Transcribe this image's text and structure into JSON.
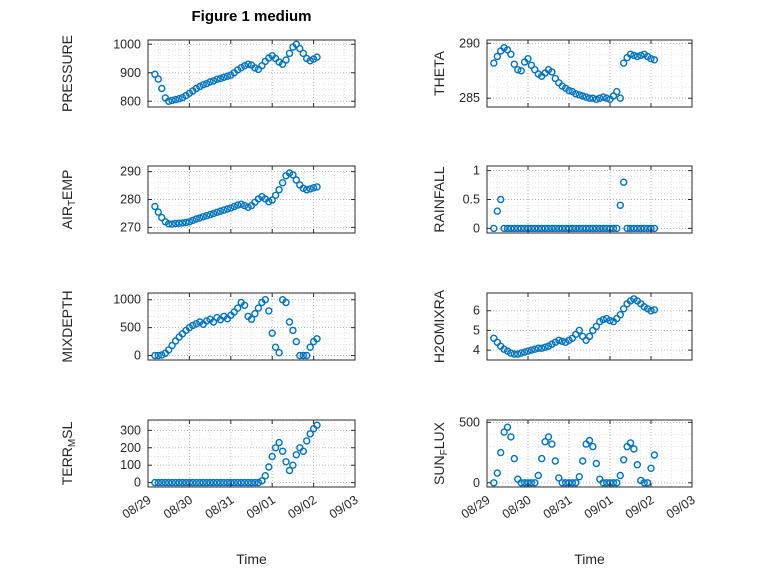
{
  "title": "Figure 1 medium",
  "chart_meta": {
    "xlabel": "Time",
    "marker_color": "#0072BD",
    "grid": true,
    "xlim": [
      0,
      5
    ],
    "xticks": [
      0,
      1,
      2,
      3,
      4,
      5
    ],
    "xticklabels": [
      "08/29",
      "08/30",
      "08/31",
      "09/01",
      "09/02",
      "09/03"
    ],
    "x_minor": 0.25,
    "x": [
      0.167,
      0.25,
      0.333,
      0.417,
      0.5,
      0.583,
      0.667,
      0.75,
      0.833,
      0.917,
      1,
      1.083,
      1.167,
      1.25,
      1.333,
      1.417,
      1.5,
      1.583,
      1.667,
      1.75,
      1.833,
      1.917,
      2,
      2.083,
      2.167,
      2.25,
      2.333,
      2.417,
      2.5,
      2.583,
      2.667,
      2.75,
      2.833,
      2.917,
      3,
      3.083,
      3.167,
      3.25,
      3.333,
      3.417,
      3.5,
      3.583,
      3.667,
      3.75,
      3.833,
      3.917,
      4,
      4.083
    ]
  },
  "chart_data": [
    {
      "type": "scatter",
      "name": "PRESSURE",
      "ylabel": "PRESSURE",
      "ylim": [
        780,
        1015
      ],
      "ytick_values": [
        800,
        900,
        1000
      ],
      "ytick_labels": [
        "800",
        "900",
        "1000"
      ],
      "y_minor": 20,
      "values": [
        895,
        878,
        845,
        812,
        800,
        803,
        806,
        809,
        813,
        820,
        828,
        836,
        845,
        852,
        858,
        862,
        868,
        872,
        877,
        880,
        884,
        888,
        892,
        900,
        910,
        918,
        925,
        930,
        927,
        917,
        912,
        925,
        940,
        952,
        960,
        950,
        938,
        930,
        945,
        968,
        990,
        1000,
        985,
        968,
        950,
        942,
        948,
        955
      ]
    },
    {
      "type": "scatter",
      "name": "THETA",
      "ylabel": "THETA",
      "ylim": [
        284.2,
        290.3
      ],
      "ytick_values": [
        285,
        290
      ],
      "ytick_labels": [
        "285",
        "290"
      ],
      "y_minor": 1,
      "values": [
        288.2,
        288.8,
        289.3,
        289.6,
        289.4,
        289.0,
        288.1,
        287.6,
        287.5,
        288.3,
        288.6,
        288.0,
        287.6,
        287.2,
        287.0,
        287.3,
        287.6,
        287.4,
        286.8,
        286.4,
        286.1,
        285.9,
        285.7,
        285.6,
        285.4,
        285.3,
        285.2,
        285.1,
        285.0,
        285.0,
        284.9,
        285.0,
        285.1,
        285.0,
        284.9,
        285.2,
        285.6,
        285.0,
        288.2,
        288.7,
        289.0,
        288.9,
        288.8,
        288.9,
        289.0,
        288.8,
        288.6,
        288.5
      ]
    },
    {
      "type": "scatter",
      "name": "AIR_TEMP",
      "ylabel": "AIR_TEMP",
      "ylim": [
        268,
        292
      ],
      "ytick_values": [
        270,
        280,
        290
      ],
      "ytick_labels": [
        "270",
        "280",
        "290"
      ],
      "y_minor": 2,
      "values": [
        277.5,
        275.5,
        273.5,
        272.0,
        271.3,
        271.2,
        271.4,
        271.5,
        271.6,
        271.8,
        272.0,
        272.5,
        273.0,
        273.4,
        273.8,
        274.2,
        274.6,
        275.0,
        275.4,
        275.8,
        276.2,
        276.6,
        277.0,
        277.5,
        278.0,
        278.3,
        277.8,
        277.2,
        277.8,
        279.0,
        280.2,
        281.0,
        280.2,
        279.2,
        279.8,
        281.5,
        283.5,
        286.0,
        288.5,
        289.5,
        288.8,
        287.0,
        285.2,
        284.0,
        283.5,
        283.8,
        284.2,
        284.5
      ]
    },
    {
      "type": "scatter",
      "name": "RAINFALL",
      "ylabel": "RAINFALL",
      "ylim": [
        -0.08,
        1.08
      ],
      "ytick_values": [
        0,
        0.5,
        1
      ],
      "ytick_labels": [
        "0",
        "0.5",
        "1"
      ],
      "y_minor": 0.1,
      "values": [
        0,
        0.3,
        0.5,
        0,
        0,
        0,
        0,
        0,
        0,
        0,
        0,
        0,
        0,
        0,
        0,
        0,
        0,
        0,
        0,
        0,
        0,
        0,
        0,
        0,
        0,
        0,
        0,
        0,
        0,
        0,
        0,
        0,
        0,
        0,
        0,
        0,
        0,
        0.4,
        0.8,
        0,
        0,
        0,
        0,
        0,
        0,
        0,
        0,
        0
      ]
    },
    {
      "type": "scatter",
      "name": "MIXDEPTH",
      "ylabel": "MIXDEPTH",
      "ylim": [
        -80,
        1120
      ],
      "ytick_values": [
        0,
        500,
        1000
      ],
      "ytick_labels": [
        "0",
        "500",
        "1000"
      ],
      "y_minor": 100,
      "values": [
        0,
        0,
        10,
        40,
        100,
        180,
        260,
        330,
        390,
        450,
        500,
        540,
        570,
        600,
        560,
        620,
        650,
        600,
        680,
        640,
        700,
        660,
        720,
        780,
        850,
        950,
        900,
        700,
        650,
        750,
        850,
        950,
        1000,
        800,
        400,
        150,
        50,
        1000,
        950,
        600,
        450,
        250,
        0,
        0,
        0,
        150,
        250,
        300
      ]
    },
    {
      "type": "scatter",
      "name": "H2OMIXRA",
      "ylabel": "H2OMIXRA",
      "ylim": [
        3.5,
        6.9
      ],
      "ytick_values": [
        4,
        5,
        6
      ],
      "ytick_labels": [
        "4",
        "5",
        "6"
      ],
      "y_minor": 0.5,
      "values": [
        4.6,
        4.4,
        4.2,
        4.05,
        3.95,
        3.85,
        3.8,
        3.8,
        3.85,
        3.9,
        3.95,
        4.0,
        4.05,
        4.1,
        4.1,
        4.15,
        4.2,
        4.3,
        4.4,
        4.5,
        4.45,
        4.4,
        4.5,
        4.6,
        4.8,
        5.0,
        4.7,
        4.5,
        4.7,
        5.0,
        5.2,
        5.45,
        5.55,
        5.6,
        5.5,
        5.45,
        5.6,
        5.8,
        6.1,
        6.35,
        6.5,
        6.6,
        6.5,
        6.35,
        6.2,
        6.1,
        6.0,
        6.05
      ]
    },
    {
      "type": "scatter",
      "name": "TERR_MSL",
      "ylabel": "TERR_MSL",
      "ylim": [
        -25,
        360
      ],
      "ytick_values": [
        0,
        100,
        200,
        300
      ],
      "ytick_labels": [
        "0",
        "100",
        "200",
        "300"
      ],
      "y_minor": 50,
      "values": [
        0,
        0,
        0,
        0,
        0,
        0,
        0,
        0,
        0,
        0,
        0,
        0,
        0,
        0,
        0,
        0,
        0,
        0,
        0,
        0,
        0,
        0,
        0,
        0,
        0,
        0,
        0,
        0,
        0,
        0,
        0,
        10,
        40,
        90,
        150,
        200,
        230,
        180,
        120,
        70,
        100,
        160,
        200,
        180,
        240,
        280,
        310,
        330
      ]
    },
    {
      "type": "scatter",
      "name": "SUN_FLUX",
      "ylabel": "SUN_FLUX",
      "ylim": [
        -35,
        520
      ],
      "ytick_values": [
        0,
        500
      ],
      "ytick_labels": [
        "0",
        "500"
      ],
      "y_minor": 100,
      "values": [
        0,
        80,
        250,
        420,
        460,
        380,
        200,
        30,
        0,
        0,
        0,
        0,
        0,
        60,
        200,
        340,
        380,
        320,
        180,
        40,
        0,
        0,
        0,
        0,
        0,
        50,
        180,
        320,
        350,
        300,
        160,
        30,
        0,
        0,
        0,
        0,
        0,
        60,
        190,
        300,
        330,
        280,
        150,
        20,
        0,
        0,
        120,
        230
      ]
    }
  ]
}
